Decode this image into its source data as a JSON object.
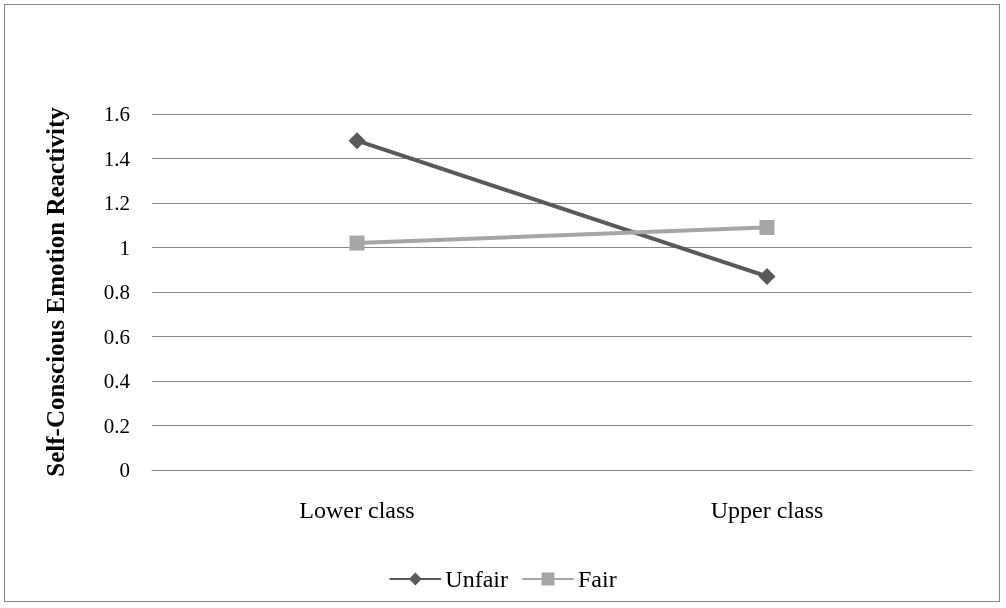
{
  "chart_data": {
    "type": "line",
    "ylabel": "Self-Conscious Emotion Reactivity",
    "categories": [
      "Lower class",
      "Upper class"
    ],
    "series": [
      {
        "name": "Unfair",
        "color": "#595959",
        "marker": "diamond",
        "values": [
          1.48,
          0.87
        ]
      },
      {
        "name": "Fair",
        "color": "#a6a6a6",
        "marker": "square",
        "values": [
          1.02,
          1.09
        ]
      }
    ],
    "ylim": [
      0,
      1.6
    ],
    "yticks": [
      0,
      0.2,
      0.4,
      0.6,
      0.8,
      1,
      1.2,
      1.4,
      1.6
    ],
    "grid": "y",
    "legend": "bottom",
    "line_style": "solid"
  }
}
